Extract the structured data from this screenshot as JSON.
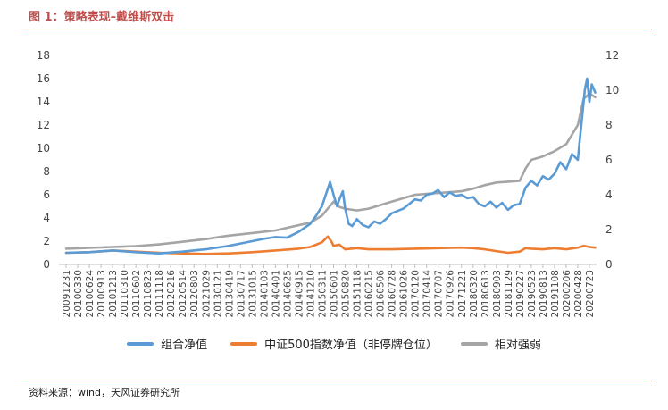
{
  "figure": {
    "title": "图 1：策略表现–戴维斯双击",
    "source": "资料来源：wind，天风证券研究所"
  },
  "chart_data": {
    "type": "line",
    "grid": false,
    "legend_position": "bottom",
    "y_left": {
      "min": 0,
      "max": 18,
      "ticks": [
        0,
        2,
        4,
        6,
        8,
        10,
        12,
        14,
        16,
        18
      ]
    },
    "y_right": {
      "min": 0,
      "max": 12,
      "ticks": [
        0,
        2,
        4,
        6,
        8,
        10,
        12
      ]
    },
    "x_tick_labels": [
      "20091231",
      "20100330",
      "20100624",
      "20100913",
      "20101213",
      "20110310",
      "20110602",
      "20110823",
      "20111118",
      "20120216",
      "20120514",
      "20120803",
      "20121029",
      "20130121",
      "20130419",
      "20130717",
      "20131015",
      "20140103",
      "20140401",
      "20140625",
      "20140915",
      "20141210",
      "20150311",
      "20150601",
      "20150820",
      "20151118",
      "20160215",
      "20160506",
      "20160728",
      "20161026",
      "20170120",
      "20170414",
      "20170707",
      "20170926",
      "20171221",
      "20180320",
      "20180613",
      "20180903",
      "20181129",
      "20190227",
      "20190523",
      "20190813",
      "20191108",
      "20200206",
      "20200428",
      "20200723"
    ],
    "series": [
      {
        "name": "组合净值",
        "axis": "left",
        "color": "#5b9bd5",
        "points": [
          [
            0,
            1.0
          ],
          [
            2,
            1.05
          ],
          [
            4,
            1.2
          ],
          [
            6,
            1.05
          ],
          [
            8,
            0.95
          ],
          [
            10,
            1.1
          ],
          [
            12,
            1.3
          ],
          [
            14,
            1.6
          ],
          [
            15,
            1.8
          ],
          [
            16,
            2.0
          ],
          [
            17,
            2.2
          ],
          [
            18,
            2.35
          ],
          [
            19,
            2.3
          ],
          [
            20,
            2.8
          ],
          [
            21,
            3.5
          ],
          [
            21.5,
            4.2
          ],
          [
            22,
            5.0
          ],
          [
            22.4,
            6.2
          ],
          [
            22.7,
            7.1
          ],
          [
            23,
            6.0
          ],
          [
            23.3,
            5.0
          ],
          [
            23.5,
            5.6
          ],
          [
            23.8,
            6.3
          ],
          [
            24,
            4.8
          ],
          [
            24.3,
            3.5
          ],
          [
            24.6,
            3.3
          ],
          [
            25,
            3.9
          ],
          [
            25.5,
            3.4
          ],
          [
            26,
            3.2
          ],
          [
            26.5,
            3.7
          ],
          [
            27,
            3.5
          ],
          [
            27.5,
            3.9
          ],
          [
            28,
            4.4
          ],
          [
            29,
            4.8
          ],
          [
            30,
            5.6
          ],
          [
            30.5,
            5.5
          ],
          [
            31,
            6.0
          ],
          [
            31.5,
            6.1
          ],
          [
            32,
            6.4
          ],
          [
            32.5,
            5.8
          ],
          [
            33,
            6.2
          ],
          [
            33.5,
            5.9
          ],
          [
            34,
            6.0
          ],
          [
            34.5,
            5.7
          ],
          [
            35,
            5.8
          ],
          [
            35.5,
            5.2
          ],
          [
            36,
            5.0
          ],
          [
            36.5,
            5.4
          ],
          [
            37,
            4.9
          ],
          [
            37.5,
            5.3
          ],
          [
            38,
            4.7
          ],
          [
            38.5,
            5.1
          ],
          [
            39,
            5.2
          ],
          [
            39.5,
            6.6
          ],
          [
            40,
            7.2
          ],
          [
            40.5,
            6.8
          ],
          [
            41,
            7.6
          ],
          [
            41.5,
            7.3
          ],
          [
            42,
            7.8
          ],
          [
            42.5,
            8.8
          ],
          [
            43,
            8.2
          ],
          [
            43.5,
            9.5
          ],
          [
            44,
            9.0
          ],
          [
            44.3,
            12.0
          ],
          [
            44.6,
            15.0
          ],
          [
            44.8,
            16.0
          ],
          [
            45,
            14.0
          ],
          [
            45.2,
            15.5
          ],
          [
            45.5,
            14.8
          ]
        ]
      },
      {
        "name": "中证500指数净值（非停牌仓位）",
        "axis": "left",
        "color": "#ed7d31",
        "points": [
          [
            0,
            1.0
          ],
          [
            2,
            1.05
          ],
          [
            4,
            1.2
          ],
          [
            6,
            1.1
          ],
          [
            8,
            1.0
          ],
          [
            10,
            0.95
          ],
          [
            12,
            0.9
          ],
          [
            14,
            0.95
          ],
          [
            16,
            1.05
          ],
          [
            18,
            1.2
          ],
          [
            20,
            1.35
          ],
          [
            21,
            1.5
          ],
          [
            22,
            1.9
          ],
          [
            22.5,
            2.4
          ],
          [
            22.8,
            2.0
          ],
          [
            23,
            1.6
          ],
          [
            23.5,
            1.7
          ],
          [
            24,
            1.3
          ],
          [
            25,
            1.4
          ],
          [
            26,
            1.3
          ],
          [
            28,
            1.3
          ],
          [
            30,
            1.35
          ],
          [
            32,
            1.4
          ],
          [
            34,
            1.45
          ],
          [
            35,
            1.4
          ],
          [
            36,
            1.3
          ],
          [
            37,
            1.15
          ],
          [
            38,
            1.0
          ],
          [
            39,
            1.1
          ],
          [
            39.5,
            1.4
          ],
          [
            40,
            1.35
          ],
          [
            41,
            1.3
          ],
          [
            42,
            1.4
          ],
          [
            43,
            1.3
          ],
          [
            44,
            1.45
          ],
          [
            44.5,
            1.6
          ],
          [
            45,
            1.5
          ],
          [
            45.5,
            1.45
          ]
        ]
      },
      {
        "name": "相对强弱",
        "axis": "right",
        "color": "#a5a5a5",
        "points": [
          [
            0,
            0.9
          ],
          [
            2,
            0.95
          ],
          [
            4,
            1.0
          ],
          [
            6,
            1.05
          ],
          [
            8,
            1.15
          ],
          [
            10,
            1.3
          ],
          [
            12,
            1.45
          ],
          [
            14,
            1.65
          ],
          [
            16,
            1.8
          ],
          [
            18,
            1.95
          ],
          [
            20,
            2.25
          ],
          [
            21,
            2.4
          ],
          [
            22,
            2.8
          ],
          [
            23,
            3.6
          ],
          [
            23.5,
            3.3
          ],
          [
            24,
            3.2
          ],
          [
            25,
            3.1
          ],
          [
            26,
            3.2
          ],
          [
            28,
            3.6
          ],
          [
            30,
            4.0
          ],
          [
            32,
            4.1
          ],
          [
            34,
            4.2
          ],
          [
            35,
            4.35
          ],
          [
            36,
            4.55
          ],
          [
            37,
            4.7
          ],
          [
            38,
            4.75
          ],
          [
            39,
            4.8
          ],
          [
            39.5,
            5.5
          ],
          [
            40,
            6.0
          ],
          [
            41,
            6.2
          ],
          [
            42,
            6.5
          ],
          [
            43,
            6.9
          ],
          [
            44,
            8.0
          ],
          [
            44.5,
            9.5
          ],
          [
            45,
            9.8
          ],
          [
            45.5,
            9.6
          ]
        ]
      }
    ]
  }
}
